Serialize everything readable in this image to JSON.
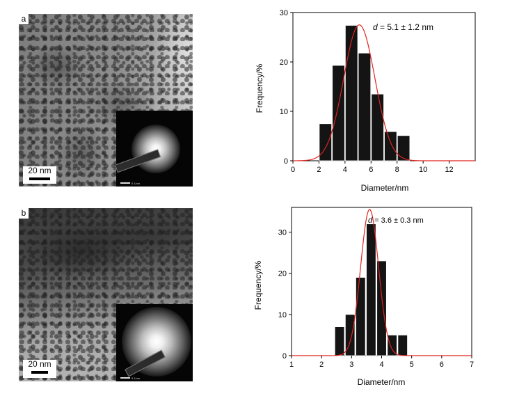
{
  "panels": [
    {
      "letter": "a",
      "scale_bar": "20 nm",
      "inset_scale": "5 1/nm",
      "annotation_prefix": "d",
      "annotation_rest": " = 5.1 ± 1.2 nm"
    },
    {
      "letter": "b",
      "scale_bar": "20 nm",
      "inset_scale": "5 1/nm",
      "annotation_prefix": "d",
      "annotation_rest": " = 3.6 ± 0.3 nm"
    }
  ],
  "colors": {
    "bars": "#141414",
    "fit_curve": "#e0231f",
    "axis": "#000000"
  },
  "chart_data": [
    {
      "type": "bar",
      "xlabel": "Diameter/nm",
      "ylabel": "Frequency/%",
      "xlim": [
        0,
        14
      ],
      "ylim": [
        0,
        30
      ],
      "xticks": [
        0,
        2,
        4,
        6,
        8,
        10,
        12
      ],
      "yticks": [
        0,
        10,
        20,
        30
      ],
      "bar_width": 1,
      "bins": [
        2.5,
        3.5,
        4.5,
        5.5,
        6.5,
        7.5,
        8.5
      ],
      "values": [
        7.5,
        19.3,
        27.4,
        21.8,
        13.5,
        5.9,
        5.1
      ],
      "fit": {
        "type": "gaussian",
        "mean": 5.1,
        "sd": 1.2,
        "peak": 27.5
      }
    },
    {
      "type": "bar",
      "xlabel": "Diameter/nm",
      "ylabel": "Frequency/%",
      "xlim": [
        1,
        7
      ],
      "ylim": [
        0,
        36
      ],
      "xticks": [
        1,
        2,
        3,
        4,
        5,
        6,
        7
      ],
      "yticks": [
        0,
        10,
        20,
        30
      ],
      "bar_width": 0.34,
      "bins": [
        2.6,
        2.95,
        3.3,
        3.65,
        4.0,
        4.35,
        4.7
      ],
      "values": [
        7,
        10,
        19,
        32,
        23,
        5,
        5
      ],
      "fit": {
        "type": "gaussian",
        "mean": 3.6,
        "sd": 0.3,
        "peak": 35.5
      }
    }
  ]
}
